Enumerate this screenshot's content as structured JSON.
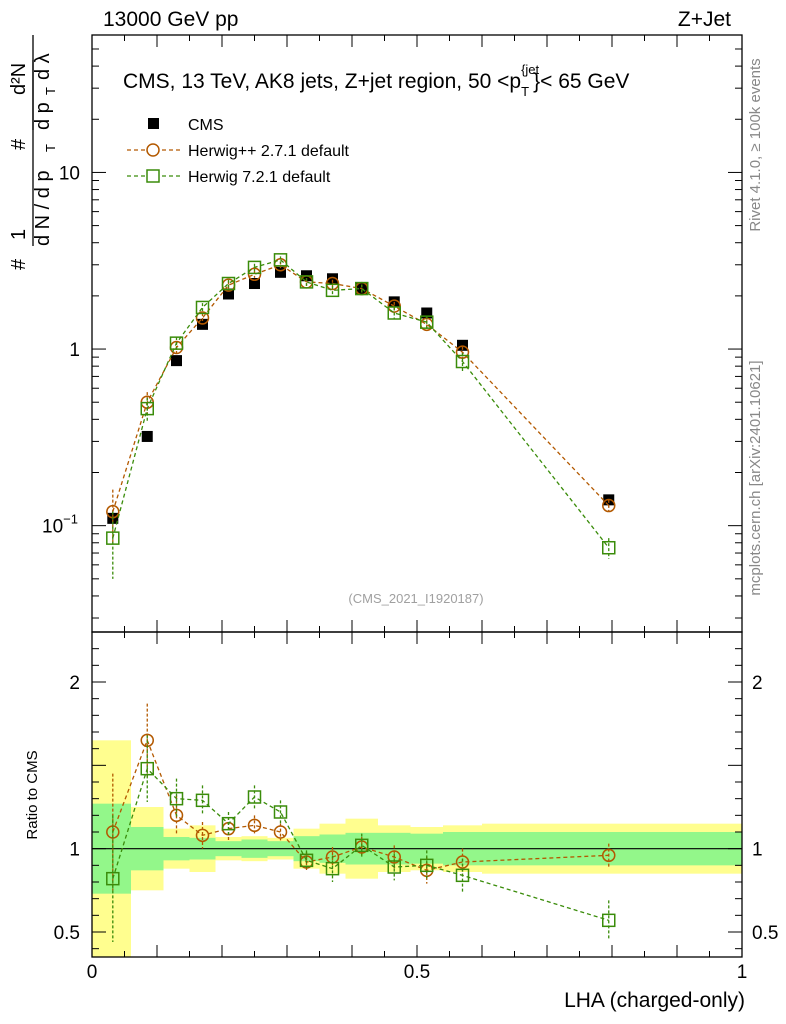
{
  "header": {
    "energy": "13000 GeV pp",
    "process": "Z+Jet"
  },
  "side_labels": {
    "rivet": "Rivet 4.1.0, ≥ 100k events",
    "mcplots": "mcplots.cern.ch [arXiv:2401.10621]"
  },
  "chart_data": {
    "type": "scatter",
    "title": "CMS, 13 TeV, AK8 jets, Z+jet region, 50 <p_T^{jet}< 65 GeV",
    "title_text": {
      "part1": "CMS, 13 TeV, AK8 jets, Z+jet region, 50 <p",
      "sup": "{jet",
      "sub": "T",
      "part2": "}< 65 GeV"
    },
    "analysis_id": "(CMS_2021_I1920187)",
    "xlabel": "LHA (charged-only)",
    "ylabel": "1/dN/dp_T d²N/dp_T dλ",
    "ylabel_parts": {
      "hash": "#",
      "one": "1",
      "dN": "d N / d p",
      "T": "T",
      "d2N": "d²N",
      "dpT": "d p",
      "dlam": "d λ"
    },
    "ratio_ylabel": "Ratio to CMS",
    "xlim": [
      0,
      1
    ],
    "ylim": [
      0.025,
      60
    ],
    "yscale": "log",
    "ratio_ylim": [
      0.35,
      2.3
    ],
    "x_ticks": [
      {
        "value": 0,
        "label": "0"
      },
      {
        "value": 0.5,
        "label": "0.5"
      },
      {
        "value": 1,
        "label": "1"
      }
    ],
    "y_ticks": [
      {
        "value": 0.1,
        "base": "10",
        "exp": "−1"
      },
      {
        "value": 1,
        "label": "1"
      },
      {
        "value": 10,
        "label": "10"
      }
    ],
    "ratio_ticks": [
      {
        "value": 0.5,
        "label": "0.5"
      },
      {
        "value": 1,
        "label": "1"
      },
      {
        "value": 2,
        "label": "2"
      }
    ],
    "x": [
      0.032,
      0.085,
      0.13,
      0.17,
      0.21,
      0.25,
      0.29,
      0.33,
      0.37,
      0.415,
      0.465,
      0.515,
      0.57,
      0.795
    ],
    "bin_edges": [
      0,
      0.06,
      0.11,
      0.15,
      0.19,
      0.23,
      0.27,
      0.31,
      0.35,
      0.39,
      0.44,
      0.49,
      0.54,
      0.6,
      1.0
    ],
    "cms_band_inner": [
      0.27,
      0.13,
      0.07,
      0.065,
      0.045,
      0.055,
      0.045,
      0.075,
      0.085,
      0.095,
      0.095,
      0.09,
      0.1,
      0.1
    ],
    "cms_band_outer": [
      0.65,
      0.25,
      0.12,
      0.14,
      0.07,
      0.075,
      0.065,
      0.12,
      0.15,
      0.18,
      0.14,
      0.13,
      0.14,
      0.15
    ],
    "series": [
      {
        "name": "CMS",
        "marker": "filled-square",
        "color": "#000000",
        "values": [
          0.11,
          0.32,
          0.86,
          1.38,
          2.05,
          2.35,
          2.72,
          2.6,
          2.5,
          2.2,
          1.85,
          1.6,
          1.05,
          0.14
        ]
      },
      {
        "name": "Herwig++ 2.7.1 default",
        "marker": "open-circle",
        "color": "#b35900",
        "values": [
          0.12,
          0.5,
          1.02,
          1.5,
          2.3,
          2.65,
          3.0,
          2.4,
          2.35,
          2.2,
          1.75,
          1.38,
          0.96,
          0.13
        ],
        "errors": [
          0.04,
          0.07,
          0.09,
          0.1,
          0.12,
          0.12,
          0.13,
          0.12,
          0.12,
          0.12,
          0.1,
          0.09,
          0.07,
          0.01
        ],
        "ratio": [
          1.1,
          1.65,
          1.2,
          1.08,
          1.12,
          1.14,
          1.1,
          0.92,
          0.95,
          1.01,
          0.95,
          0.87,
          0.92,
          0.96
        ],
        "ratio_errors": [
          0.35,
          0.22,
          0.12,
          0.08,
          0.07,
          0.06,
          0.05,
          0.06,
          0.06,
          0.06,
          0.07,
          0.08,
          0.08,
          0.07
        ]
      },
      {
        "name": "Herwig 7.2.1 default",
        "marker": "open-square",
        "color": "#3a8c0a",
        "values": [
          0.085,
          0.46,
          1.08,
          1.72,
          2.35,
          2.9,
          3.2,
          2.4,
          2.15,
          2.2,
          1.6,
          1.42,
          0.85,
          0.075
        ],
        "errors": [
          0.035,
          0.07,
          0.09,
          0.1,
          0.12,
          0.14,
          0.15,
          0.12,
          0.12,
          0.12,
          0.12,
          0.12,
          0.1,
          0.01
        ],
        "ratio": [
          0.82,
          1.48,
          1.3,
          1.29,
          1.15,
          1.31,
          1.22,
          0.93,
          0.88,
          1.02,
          0.89,
          0.9,
          0.84,
          0.57
        ],
        "ratio_errors": [
          0.38,
          0.2,
          0.12,
          0.09,
          0.07,
          0.07,
          0.07,
          0.06,
          0.08,
          0.07,
          0.08,
          0.09,
          0.1,
          0.12
        ]
      }
    ]
  }
}
